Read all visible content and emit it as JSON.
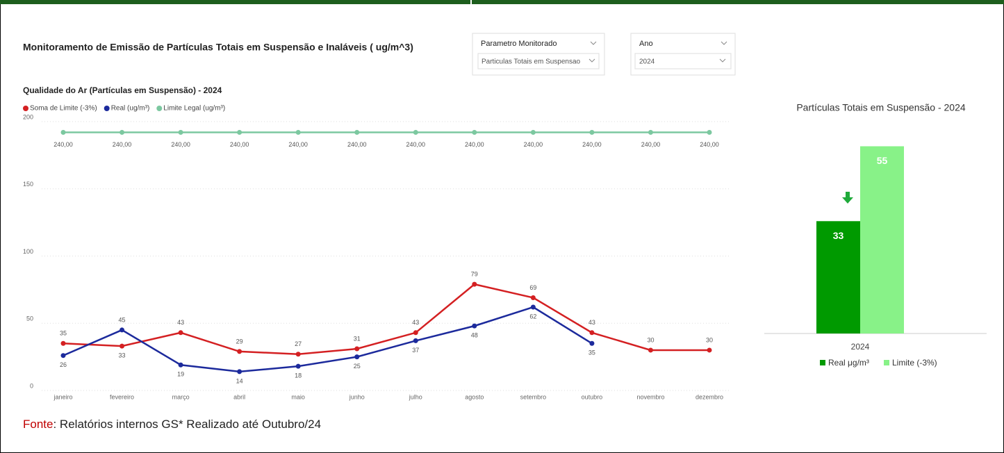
{
  "header": {
    "title": "Monitoramento de Emissão de Partículas Totais  em Suspensão e Inaláveis ( ug/m^3)"
  },
  "filters": [
    {
      "label": "Parametro Monitorado",
      "value": "Particulas Totais em Suspensao"
    },
    {
      "label": "Ano",
      "value": "2024"
    }
  ],
  "footer": {
    "label": "Fonte",
    "text": ": Relatórios internos GS* Realizado até Outubro/24"
  },
  "chart_data": [
    {
      "type": "line",
      "title": "Qualidade do Ar (Partículas em Suspensão) - 2024",
      "categories": [
        "janeiro",
        "fevereiro",
        "março",
        "abril",
        "maio",
        "junho",
        "julho",
        "agosto",
        "setembro",
        "outubro",
        "novembro",
        "dezembro"
      ],
      "series": [
        {
          "name": "Soma de Limite (-3%)",
          "color": "#d42022",
          "values": [
            35,
            33,
            43,
            29,
            27,
            31,
            43,
            79,
            69,
            43,
            30,
            30
          ]
        },
        {
          "name": "Real (ug/m³)",
          "color": "#1c2a9c",
          "values": [
            26,
            45,
            19,
            14,
            18,
            25,
            37,
            48,
            62,
            35,
            null,
            null
          ]
        },
        {
          "name": "Limite Legal (ug/m³)",
          "color": "#7cc8a0",
          "axis": "y2",
          "values": [
            240,
            240,
            240,
            240,
            240,
            240,
            240,
            240,
            240,
            240,
            240,
            240
          ],
          "value_labels": [
            "240,00",
            "240,00",
            "240,00",
            "240,00",
            "240,00",
            "240,00",
            "240,00",
            "240,00",
            "240,00",
            "240,00",
            "240,00",
            "240,00"
          ]
        }
      ],
      "ylim": [
        0,
        200
      ],
      "yticks": [
        0,
        50,
        100,
        150,
        200
      ],
      "y2lim": [
        0,
        250
      ],
      "grid": true
    },
    {
      "type": "bar",
      "title": "Partículas Totais em Suspensão - 2024",
      "categories": [
        "2024"
      ],
      "series": [
        {
          "name": "Real μg/m³",
          "color": "#009a00",
          "values": [
            33
          ]
        },
        {
          "name": "Limite (-3%)",
          "color": "#88f288",
          "values": [
            55
          ]
        }
      ],
      "ylim": [
        0,
        60
      ]
    }
  ]
}
